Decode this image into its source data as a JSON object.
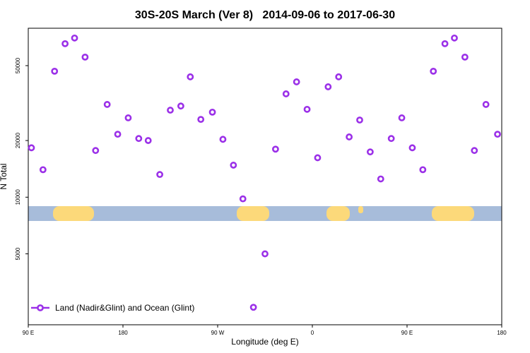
{
  "chart_data": {
    "type": "scatter",
    "title": "30S-20S March (Ver 8)   2014-09-06 to 2017-06-30",
    "x_label": "Longitude (deg E)",
    "y_label": "N Total",
    "xlim": [
      90,
      540
    ],
    "xticks": [
      {
        "value": 90,
        "label": "90 E"
      },
      {
        "value": 180,
        "label": "180"
      },
      {
        "value": 270,
        "label": "90 W"
      },
      {
        "value": 360,
        "label": "0"
      },
      {
        "value": 450,
        "label": "90 E"
      },
      {
        "value": 540,
        "label": "180"
      }
    ],
    "ylim": [
      2100,
      79000
    ],
    "yticks": [
      5000,
      10000,
      20000,
      50000
    ],
    "log_y": true,
    "legend": "bottom left",
    "series": [
      {
        "name": "Land (Nadir&Glint) and Ocean (Glint)",
        "color": "#9b30e8",
        "x": [
          93,
          104,
          115,
          125,
          134,
          144,
          154,
          165,
          175,
          185,
          195,
          204,
          215,
          225,
          235,
          244,
          254,
          265,
          275,
          285,
          294,
          304,
          315,
          325,
          335,
          345,
          355,
          365,
          375,
          385,
          395,
          405,
          415,
          425,
          435,
          445,
          455,
          465,
          475,
          486,
          495,
          505,
          514,
          525,
          536
        ],
        "values": [
          18300,
          14000,
          46700,
          65400,
          70100,
          55500,
          17700,
          31100,
          21600,
          26400,
          20500,
          20000,
          13200,
          29000,
          30500,
          43600,
          25900,
          28300,
          20300,
          14800,
          9800,
          2600,
          5000,
          18000,
          35400,
          41000,
          29300,
          16200,
          38600,
          43600,
          20900,
          25700,
          17400,
          12500,
          20500,
          26400,
          18300,
          14000,
          46700,
          65400,
          70100,
          55500,
          17700,
          31100,
          21600
        ]
      }
    ]
  }
}
